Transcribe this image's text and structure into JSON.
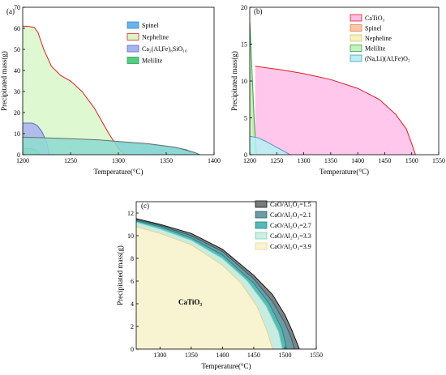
{
  "chart_data": [
    {
      "panel_label": "(a)",
      "type": "area",
      "xlabel": "Temperature(°C)",
      "ylabel": "Precipitated mass(g)",
      "xlim": [
        1200,
        1400
      ],
      "ylim": [
        0,
        70
      ],
      "xticks": [
        1200,
        1250,
        1300,
        1350,
        1400
      ],
      "yticks": [
        0,
        10,
        20,
        30,
        40,
        50,
        60,
        70
      ],
      "legend_position": "top-right",
      "series": [
        {
          "name": "Spinel",
          "fill": "#6ab4ea",
          "line": "#3d86c8",
          "x": [
            1200,
            1210,
            1220,
            1235,
            1250,
            1270,
            1300,
            1340,
            1370,
            1385
          ],
          "y": [
            8,
            8,
            7.8,
            7.3,
            6.8,
            6.3,
            5.7,
            4.5,
            2.5,
            0
          ]
        },
        {
          "name": "Nepheline",
          "fill": "#d8f7c9",
          "line": "#e02020",
          "x": [
            1200,
            1205,
            1212,
            1216,
            1222,
            1230,
            1240,
            1250,
            1262,
            1275,
            1290,
            1300,
            1306
          ],
          "y": [
            61,
            61,
            60.5,
            58,
            50,
            42,
            37.5,
            35,
            30,
            22,
            10,
            3,
            0
          ]
        },
        {
          "name": "Ca₂(Al,Fe)₈SiO₁₆",
          "fill": "#a8b2ee",
          "line": "#5b6bcf",
          "x": [
            1200,
            1210,
            1215,
            1220,
            1225,
            1228
          ],
          "y": [
            15,
            15,
            14,
            11,
            6,
            0
          ]
        },
        {
          "name": "Melilite",
          "fill": "#55cc80",
          "line": "#2f9f5a",
          "x": [
            1200,
            1205,
            1210,
            1215,
            1218
          ],
          "y": [
            3,
            3,
            2.8,
            2,
            0
          ]
        },
        {
          "name": "",
          "fill": "#8fdcd0",
          "line": "#607070",
          "x": [
            1200,
            1220,
            1250,
            1280,
            1300,
            1330,
            1360,
            1380,
            1385
          ],
          "y": [
            8.3,
            8.1,
            7.6,
            7.0,
            6.3,
            5.3,
            3.5,
            1.0,
            0
          ]
        }
      ]
    },
    {
      "panel_label": "(b)",
      "type": "area",
      "xlabel": "Temperature(°C)",
      "ylabel": "Precipitated mass(g)",
      "xlim": [
        1200,
        1550
      ],
      "ylim": [
        0,
        20
      ],
      "xticks": [
        1200,
        1250,
        1300,
        1350,
        1400,
        1450,
        1500,
        1550
      ],
      "yticks": [
        0,
        5,
        10,
        15,
        20
      ],
      "legend_position": "top-right",
      "series": [
        {
          "name": "CaTiO₃",
          "fill": "#ffbde8",
          "line": "#e02020",
          "x": [
            1210,
            1230,
            1260,
            1300,
            1350,
            1400,
            1440,
            1470,
            1490,
            1500,
            1507
          ],
          "y": [
            12,
            11.8,
            11.5,
            11,
            10.2,
            9,
            7.5,
            5.5,
            3.5,
            1.5,
            0
          ]
        },
        {
          "name": "Spinel",
          "fill": "#f8c8a8",
          "line": "#e08050",
          "x": [
            1200,
            1203,
            1206,
            1209,
            1212
          ],
          "y": [
            12,
            10,
            6,
            2,
            0
          ]
        },
        {
          "name": "Nepheline",
          "fill": "#f6f2bd",
          "line": "#d4c070",
          "x": [
            1200,
            1203,
            1206,
            1210
          ],
          "y": [
            8,
            6,
            3,
            0
          ]
        },
        {
          "name": "Melilite",
          "fill": "#c6f2c0",
          "line": "#3aa050",
          "x": [
            1200,
            1202,
            1205,
            1208,
            1212
          ],
          "y": [
            18,
            15,
            10,
            5,
            0
          ]
        },
        {
          "name": "(Na,Li)(Al,Fe)O₂",
          "fill": "#b6f0f4",
          "line": "#5599bb",
          "x": [
            1200,
            1215,
            1230,
            1250,
            1275
          ],
          "y": [
            2.5,
            2.3,
            1.8,
            1,
            0
          ]
        }
      ]
    },
    {
      "panel_label": "(c)",
      "type": "area",
      "xlabel": "Temperature(°C)",
      "ylabel": "Precipitated mass(g)",
      "xlim": [
        1262,
        1550
      ],
      "ylim": [
        0,
        13
      ],
      "xticks": [
        1300,
        1350,
        1400,
        1450,
        1500,
        1550
      ],
      "yticks": [
        0,
        2,
        4,
        6,
        8,
        10,
        12
      ],
      "legend_position": "top-right",
      "annotation": "CaTiO₃",
      "series": [
        {
          "name": "CaO/Al₂O₃=1.5",
          "fill": "#777d7d",
          "line": "#111111",
          "x": [
            1262,
            1300,
            1350,
            1400,
            1450,
            1480,
            1500,
            1510,
            1518,
            1523
          ],
          "y": [
            11.5,
            11,
            10.2,
            8.8,
            6.5,
            4.8,
            3,
            1.8,
            0.7,
            0
          ]
        },
        {
          "name": "CaO/Al₂O₃=2.1",
          "fill": "#6e9ba3",
          "line": "#2f5f6a",
          "x": [
            1262,
            1300,
            1350,
            1400,
            1450,
            1480,
            1500,
            1510,
            1515
          ],
          "y": [
            11.4,
            10.9,
            10,
            8.6,
            6.2,
            4.2,
            2.3,
            1.0,
            0
          ]
        },
        {
          "name": "CaO/Al₂O₃=2.7",
          "fill": "#58b8b8",
          "line": "#1c8a8a",
          "x": [
            1262,
            1300,
            1350,
            1400,
            1450,
            1475,
            1495,
            1503
          ],
          "y": [
            11.3,
            10.8,
            9.8,
            8.3,
            5.8,
            4,
            1.8,
            0
          ]
        },
        {
          "name": "CaO/Al₂O₃=3.3",
          "fill": "#cdeee4",
          "line": "#7fcfb7",
          "x": [
            1262,
            1300,
            1350,
            1400,
            1440,
            1470,
            1490,
            1496
          ],
          "y": [
            11.2,
            10.6,
            9.6,
            8,
            6,
            3.8,
            1.5,
            0
          ]
        },
        {
          "name": "CaO/Al₂O₃=3.9",
          "fill": "#fbf4d0",
          "line": "#e8d48a",
          "x": [
            1262,
            1300,
            1350,
            1400,
            1430,
            1455,
            1472,
            1480
          ],
          "y": [
            10.8,
            10.2,
            9.2,
            7.4,
            5.8,
            3.8,
            1.5,
            0
          ]
        }
      ]
    }
  ]
}
